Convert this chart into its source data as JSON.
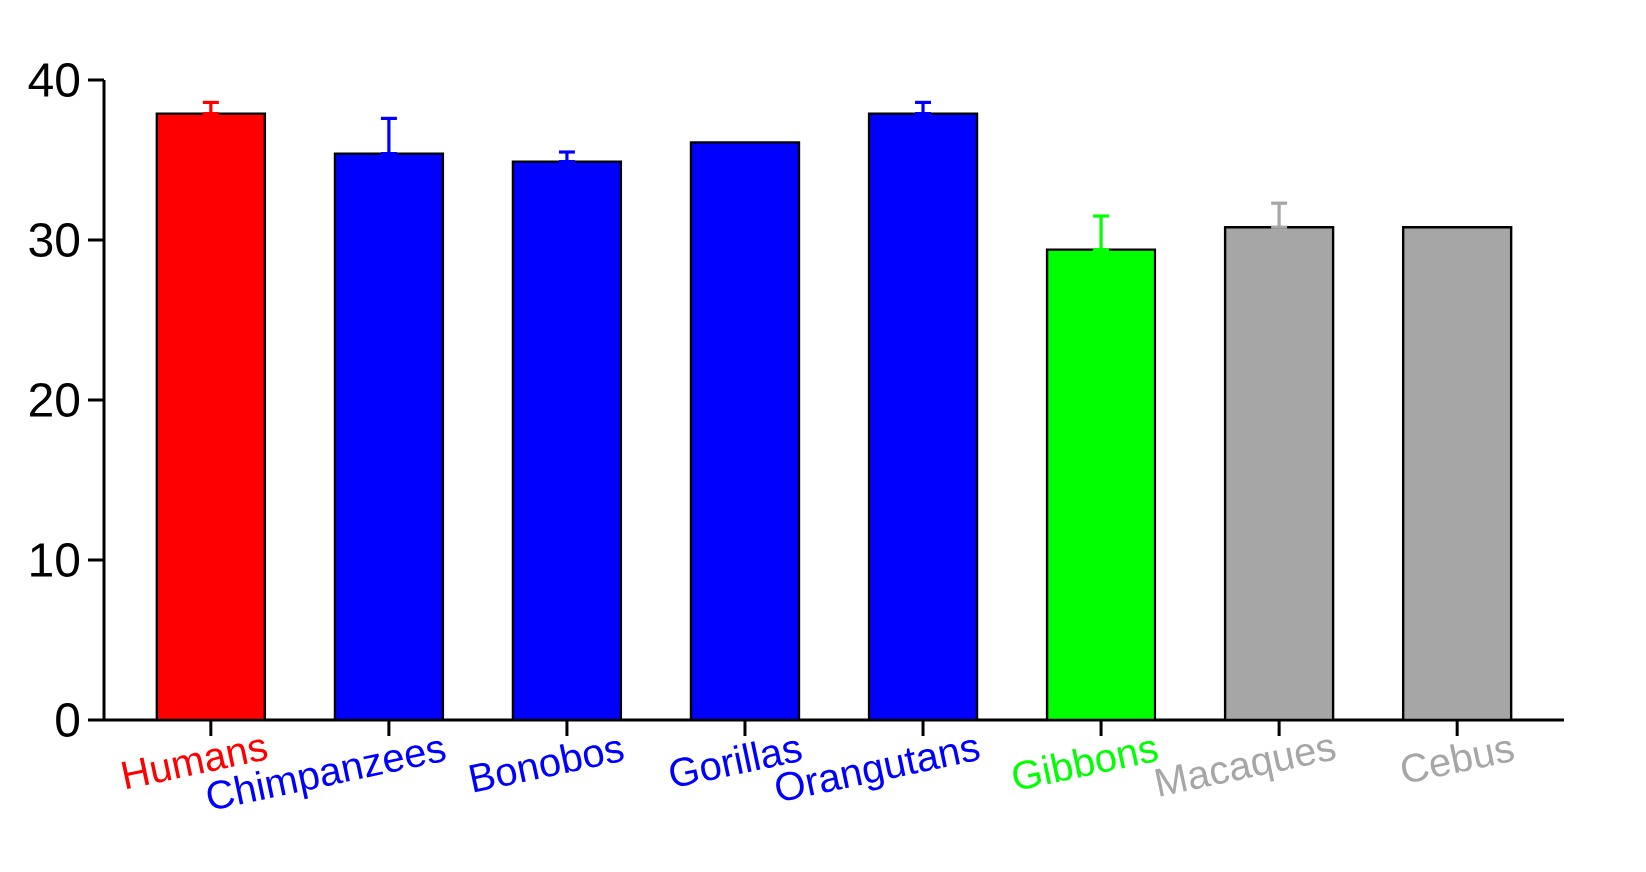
{
  "chart_data": {
    "type": "bar",
    "categories": [
      "Humans",
      "Chimpanzees",
      "Bonobos",
      "Gorillas",
      "Orangutans",
      "Gibbons",
      "Macaques",
      "Cebus"
    ],
    "values": [
      37.9,
      35.4,
      34.9,
      36.1,
      37.9,
      29.4,
      30.8,
      30.8
    ],
    "colors": [
      "#ff0000",
      "#0000ff",
      "#0000ff",
      "#0000ff",
      "#0000ff",
      "#00ff00",
      "#a6a6a6",
      "#a6a6a6"
    ],
    "errors": [
      [
        37.9,
        38.6
      ],
      [
        35.4,
        37.6
      ],
      [
        34.9,
        35.5
      ],
      null,
      [
        37.9,
        38.6
      ],
      [
        29.4,
        31.5
      ],
      [
        30.8,
        32.3
      ],
      null
    ],
    "ylim": [
      0,
      40
    ],
    "yticks": [
      0,
      10,
      20,
      30,
      40
    ]
  }
}
